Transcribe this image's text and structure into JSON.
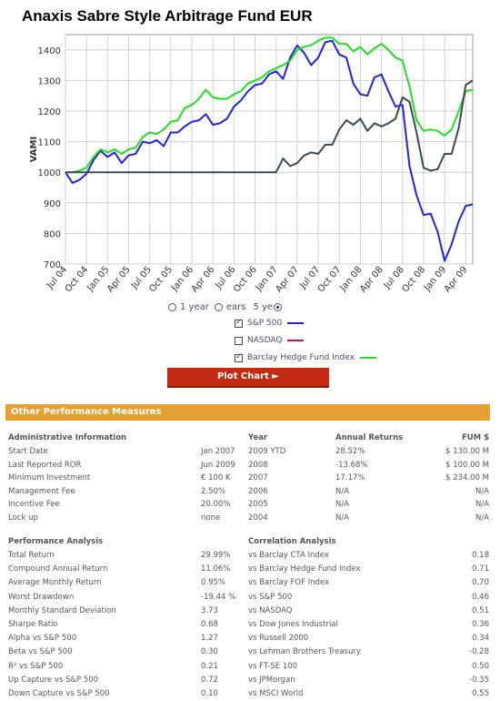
{
  "title": "Anaxis Sabre Style Arbitrage Fund EUR",
  "chart_data": {
    "type": "line",
    "ylabel": "VAMI",
    "ylim": [
      700,
      1450
    ],
    "yticks": [
      700,
      800,
      900,
      1000,
      1100,
      1200,
      1300,
      1400
    ],
    "xticks": [
      "Jul 04",
      "Oct 04",
      "Jan 05",
      "Apr 05",
      "Jul 05",
      "Oct 05",
      "Jan 06",
      "Apr 06",
      "Jul 06",
      "Oct 06",
      "Jan 07",
      "Apr 07",
      "Jul 07",
      "Oct 07",
      "Jan 08",
      "Apr 08",
      "Jul 08",
      "Oct 08",
      "Jan 09",
      "Apr 09"
    ],
    "grid": true,
    "series": [
      {
        "name": "S&P 500",
        "color": "#2222dd",
        "values": [
          1000,
          965,
          975,
          995,
          1040,
          1070,
          1050,
          1065,
          1030,
          1055,
          1060,
          1100,
          1095,
          1105,
          1085,
          1130,
          1130,
          1150,
          1165,
          1170,
          1190,
          1155,
          1160,
          1175,
          1215,
          1235,
          1265,
          1285,
          1290,
          1320,
          1330,
          1305,
          1375,
          1415,
          1390,
          1350,
          1375,
          1425,
          1430,
          1385,
          1375,
          1290,
          1255,
          1250,
          1310,
          1320,
          1265,
          1215,
          1220,
          1020,
          925,
          860,
          865,
          805,
          710,
          765,
          840,
          890,
          895
        ]
      },
      {
        "name": "NASDAQ",
        "color": "#d0104a",
        "values": []
      },
      {
        "name": "Barclay Hedge Fund Index",
        "color": "#22dd22",
        "values": [
          1000,
          1000,
          1005,
          1015,
          1050,
          1075,
          1065,
          1075,
          1060,
          1075,
          1080,
          1115,
          1130,
          1125,
          1140,
          1165,
          1170,
          1210,
          1220,
          1240,
          1270,
          1245,
          1240,
          1240,
          1255,
          1265,
          1290,
          1300,
          1310,
          1330,
          1340,
          1350,
          1365,
          1400,
          1410,
          1415,
          1430,
          1440,
          1440,
          1420,
          1420,
          1395,
          1410,
          1385,
          1405,
          1420,
          1400,
          1375,
          1365,
          1280,
          1170,
          1135,
          1140,
          1135,
          1120,
          1140,
          1200,
          1265,
          1270
        ]
      },
      {
        "name": "Fund",
        "color": "#3a4a55",
        "values": [
          1000,
          1000,
          1000,
          1000,
          1000,
          1000,
          1000,
          1000,
          1000,
          1000,
          1000,
          1000,
          1000,
          1000,
          1000,
          1000,
          1000,
          1000,
          1000,
          1000,
          1000,
          1000,
          1000,
          1000,
          1000,
          1000,
          1000,
          1000,
          1000,
          1000,
          1000,
          1045,
          1020,
          1030,
          1055,
          1065,
          1060,
          1090,
          1090,
          1140,
          1170,
          1155,
          1175,
          1135,
          1160,
          1150,
          1160,
          1175,
          1245,
          1230,
          1130,
          1015,
          1005,
          1010,
          1060,
          1060,
          1145,
          1285,
          1300
        ]
      }
    ]
  },
  "range": {
    "options": [
      "1 year",
      "3 years",
      "5 years"
    ],
    "display": [
      "1 year",
      "ears",
      "5 ye"
    ],
    "selected": 2
  },
  "legend": [
    {
      "label": "S&P 500",
      "checked": true,
      "color": "#2222dd"
    },
    {
      "label": "NASDAQ",
      "checked": false,
      "color": "#d0104a"
    },
    {
      "label": "Barclay Hedge Fund Index",
      "checked": true,
      "color": "#22dd22"
    }
  ],
  "plot_button": "Plot Chart ►",
  "section_title": "Other Performance Measures",
  "admin": {
    "header": "Administrative Information",
    "rows": [
      [
        "Start Date",
        "Jan 2007"
      ],
      [
        "Last Reported ROR",
        "Jun 2009"
      ],
      [
        "Minimum Investment",
        "€ 100 K"
      ],
      [
        "Management Fee",
        "2.50%"
      ],
      [
        "Incentive Fee",
        "20.00%"
      ],
      [
        "Lock up",
        "none"
      ]
    ]
  },
  "returns": {
    "headers": [
      "Year",
      "Annual Returns",
      "FUM $"
    ],
    "rows": [
      [
        "2009 YTD",
        "28.52%",
        "$ 130.00 M"
      ],
      [
        "2008",
        "-13.68%",
        "$ 100.00 M"
      ],
      [
        "2007",
        "17.17%",
        "$ 234.00 M"
      ],
      [
        "2006",
        "N/A",
        "N/A"
      ],
      [
        "2005",
        "N/A",
        "N/A"
      ],
      [
        "2004",
        "N/A",
        "N/A"
      ]
    ]
  },
  "performance": {
    "header": "Performance Analysis",
    "rows": [
      [
        "Total Return",
        "29.99%"
      ],
      [
        "Compound Annual Return",
        "11.06%"
      ],
      [
        "Average Monthly Return",
        "0.95%"
      ],
      [
        "Worst Drawdown",
        "-19.44 %"
      ],
      [
        "Monthly Standard Deviation",
        "3.73"
      ],
      [
        "Sharpe Ratio",
        "0.68"
      ],
      [
        "Alpha vs S&P 500",
        "1.27"
      ],
      [
        "Beta vs S&P 500",
        "0.30"
      ],
      [
        "R² vs S&P 500",
        "0.21"
      ],
      [
        "Up Capture vs S&P 500",
        "0.72"
      ],
      [
        "Down Capture vs S&P 500",
        "0.10"
      ]
    ]
  },
  "correlation": {
    "header": "Correlation Analysis",
    "rows": [
      [
        "vs Barclay CTA Index",
        "0.18"
      ],
      [
        "vs Barclay Hedge Fund Index",
        "0.71"
      ],
      [
        "vs Barclay FOF Index",
        "0.70"
      ],
      [
        "vs S&P 500",
        "0.46"
      ],
      [
        "vs NASDAQ",
        "0.51"
      ],
      [
        "vs Dow Jones Industrial",
        "0.36"
      ],
      [
        "vs Russell 2000",
        "0.34"
      ],
      [
        "vs Lehman Brothers Treasury",
        "-0.28"
      ],
      [
        "vs FT-SE 100",
        "0.50"
      ],
      [
        "vs JPMorgan",
        "-0.35"
      ],
      [
        "vs MSCI World",
        "0.55"
      ]
    ]
  }
}
